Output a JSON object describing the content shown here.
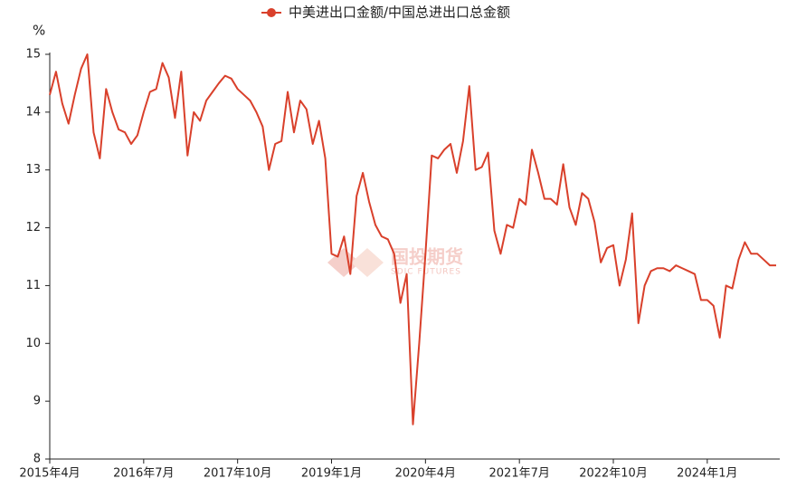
{
  "chart_data": {
    "type": "line",
    "y_unit": "%",
    "watermark": "国投期货",
    "watermark_sub": "SDIC FUTURES",
    "categories": [
      "2015年4月",
      null,
      null,
      null,
      null,
      null,
      null,
      null,
      null,
      null,
      null,
      null,
      null,
      null,
      null,
      "2016年7月",
      null,
      null,
      null,
      null,
      null,
      null,
      null,
      null,
      null,
      null,
      null,
      null,
      null,
      null,
      "2017年10月",
      null,
      null,
      null,
      null,
      null,
      null,
      null,
      null,
      null,
      null,
      null,
      null,
      null,
      null,
      "2019年1月",
      null,
      null,
      null,
      null,
      null,
      null,
      null,
      null,
      null,
      null,
      null,
      null,
      null,
      null,
      "2020年4月",
      null,
      null,
      null,
      null,
      null,
      null,
      null,
      null,
      null,
      null,
      null,
      null,
      null,
      null,
      "2021年7月",
      null,
      null,
      null,
      null,
      null,
      null,
      null,
      null,
      null,
      null,
      null,
      null,
      null,
      null,
      "2022年10月",
      null,
      null,
      null,
      null,
      null,
      null,
      null,
      null,
      null,
      null,
      null,
      null,
      null,
      null,
      "2024年1月",
      null,
      null,
      null,
      null,
      null,
      null,
      null,
      null,
      null,
      null,
      null
    ],
    "series": [
      {
        "name": "中美进出口金额/中国总进出口总金额",
        "color": "#d9402b",
        "values": [
          14.3,
          14.7,
          14.15,
          13.8,
          14.3,
          14.75,
          15.0,
          13.65,
          13.2,
          14.4,
          14.0,
          13.7,
          13.65,
          13.45,
          13.6,
          14.0,
          14.35,
          14.4,
          14.85,
          14.6,
          13.9,
          14.7,
          13.25,
          14.0,
          13.85,
          14.2,
          14.35,
          14.5,
          14.63,
          14.58,
          14.4,
          14.3,
          14.2,
          14.0,
          13.75,
          13.0,
          13.45,
          13.5,
          14.35,
          13.65,
          14.2,
          14.05,
          13.45,
          13.85,
          13.2,
          11.55,
          11.5,
          11.85,
          11.2,
          12.55,
          12.95,
          12.45,
          12.05,
          11.85,
          11.8,
          11.55,
          10.7,
          11.2,
          8.6,
          10.0,
          11.55,
          13.25,
          13.2,
          13.35,
          13.45,
          12.95,
          13.5,
          14.45,
          13.0,
          13.05,
          13.3,
          11.95,
          11.55,
          12.05,
          12.0,
          12.5,
          12.4,
          13.35,
          12.95,
          12.5,
          12.5,
          12.4,
          13.1,
          12.35,
          12.05,
          12.6,
          12.5,
          12.1,
          11.4,
          11.65,
          11.7,
          11.0,
          11.45,
          12.25,
          10.35,
          11.0,
          11.25,
          11.3,
          11.3,
          11.25,
          11.35,
          11.3,
          11.25,
          11.2,
          10.75,
          10.75,
          10.65,
          10.1,
          11.0,
          10.95,
          11.45,
          11.75,
          11.55,
          11.55,
          11.45,
          11.35,
          11.35
        ]
      }
    ],
    "ylim": [
      8,
      15
    ],
    "yticks": [
      8,
      9,
      10,
      11,
      12,
      13,
      14,
      15
    ]
  }
}
